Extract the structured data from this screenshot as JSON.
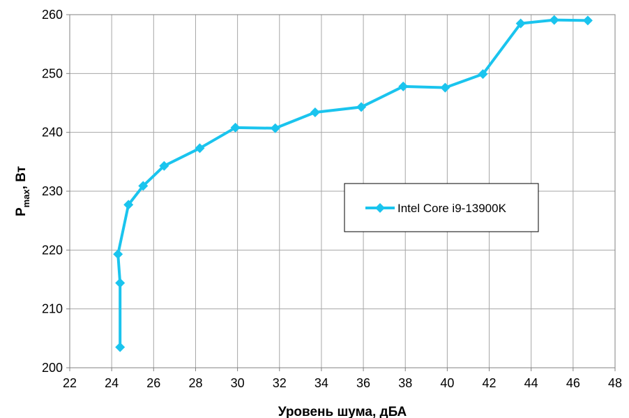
{
  "chart_data": {
    "type": "line",
    "xlabel": "Уровень шума, дБА",
    "ylabel": {
      "main": "P",
      "sub": "max",
      "rest": ", Вт"
    },
    "xlim": [
      22,
      48
    ],
    "ylim": [
      200,
      260
    ],
    "xticks": [
      22,
      24,
      26,
      28,
      30,
      32,
      34,
      36,
      38,
      40,
      42,
      44,
      46,
      48
    ],
    "yticks": [
      200,
      210,
      220,
      230,
      240,
      250,
      260
    ],
    "grid": true,
    "legend_position": "center-right",
    "series": [
      {
        "name": "Intel Core i9-13900K",
        "color": "#1ac4ee",
        "marker": "diamond",
        "points": [
          [
            24.4,
            203.5
          ],
          [
            24.4,
            214.4
          ],
          [
            24.3,
            219.3
          ],
          [
            24.8,
            227.7
          ],
          [
            25.5,
            230.9
          ],
          [
            26.5,
            234.3
          ],
          [
            28.2,
            237.3
          ],
          [
            29.9,
            240.8
          ],
          [
            31.8,
            240.7
          ],
          [
            33.7,
            243.4
          ],
          [
            35.9,
            244.3
          ],
          [
            37.9,
            247.8
          ],
          [
            39.9,
            247.6
          ],
          [
            41.7,
            249.9
          ],
          [
            43.5,
            258.5
          ],
          [
            45.1,
            259.1
          ],
          [
            46.7,
            259.0
          ]
        ]
      }
    ]
  }
}
